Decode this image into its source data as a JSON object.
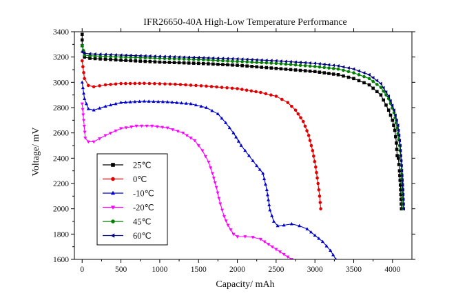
{
  "chart_data": {
    "type": "line",
    "title": "IFR26650-40A High-Low Temperature Performance",
    "xlabel": "Capacity/ mAh",
    "ylabel": "Voltage/ mV",
    "xlim": [
      -100,
      4250
    ],
    "ylim": [
      1600,
      3400
    ],
    "xticks": [
      0,
      500,
      1000,
      1500,
      2000,
      2500,
      3000,
      3500,
      4000
    ],
    "yticks": [
      1600,
      1800,
      2000,
      2200,
      2400,
      2600,
      2800,
      3000,
      3200,
      3400
    ],
    "grid": false,
    "legend_position": "bottom-left",
    "series": [
      {
        "name": "25℃",
        "color": "#000000",
        "marker": "square",
        "points": [
          [
            0,
            3380
          ],
          [
            0,
            3290
          ],
          [
            30,
            3200
          ],
          [
            100,
            3190
          ],
          [
            500,
            3175
          ],
          [
            1000,
            3160
          ],
          [
            1500,
            3150
          ],
          [
            2000,
            3135
          ],
          [
            2500,
            3110
          ],
          [
            3000,
            3085
          ],
          [
            3300,
            3060
          ],
          [
            3500,
            3030
          ],
          [
            3700,
            2980
          ],
          [
            3850,
            2900
          ],
          [
            3950,
            2780
          ],
          [
            4000,
            2700
          ],
          [
            4030,
            2620
          ],
          [
            4050,
            2520
          ],
          [
            4060,
            2420
          ],
          [
            4075,
            2400
          ],
          [
            4090,
            2300
          ],
          [
            4105,
            2150
          ],
          [
            4115,
            2000
          ]
        ]
      },
      {
        "name": "0℃",
        "color": "#e00000",
        "marker": "circle",
        "points": [
          [
            0,
            3170
          ],
          [
            30,
            3030
          ],
          [
            80,
            2975
          ],
          [
            150,
            2965
          ],
          [
            300,
            2980
          ],
          [
            500,
            2990
          ],
          [
            800,
            2992
          ],
          [
            1200,
            2985
          ],
          [
            1600,
            2970
          ],
          [
            2000,
            2950
          ],
          [
            2300,
            2920
          ],
          [
            2500,
            2890
          ],
          [
            2650,
            2840
          ],
          [
            2750,
            2780
          ],
          [
            2850,
            2690
          ],
          [
            2920,
            2580
          ],
          [
            2970,
            2460
          ],
          [
            3010,
            2330
          ],
          [
            3040,
            2200
          ],
          [
            3060,
            2100
          ],
          [
            3075,
            2000
          ]
        ]
      },
      {
        "name": "-10℃",
        "color": "#0000cc",
        "marker": "triangle-up",
        "points": [
          [
            0,
            3000
          ],
          [
            30,
            2870
          ],
          [
            80,
            2790
          ],
          [
            150,
            2780
          ],
          [
            300,
            2810
          ],
          [
            500,
            2840
          ],
          [
            800,
            2850
          ],
          [
            1100,
            2845
          ],
          [
            1400,
            2830
          ],
          [
            1600,
            2800
          ],
          [
            1750,
            2750
          ],
          [
            1850,
            2680
          ],
          [
            1950,
            2600
          ],
          [
            2050,
            2500
          ],
          [
            2150,
            2420
          ],
          [
            2250,
            2340
          ],
          [
            2330,
            2280
          ],
          [
            2380,
            2150
          ],
          [
            2420,
            1990
          ],
          [
            2470,
            1900
          ],
          [
            2520,
            1865
          ],
          [
            2600,
            1870
          ],
          [
            2700,
            1880
          ],
          [
            2800,
            1865
          ],
          [
            2900,
            1840
          ],
          [
            3000,
            1790
          ],
          [
            3100,
            1740
          ],
          [
            3200,
            1670
          ],
          [
            3270,
            1600
          ]
        ]
      },
      {
        "name": "-20℃",
        "color": "#ff00ff",
        "marker": "triangle-down",
        "points": [
          [
            0,
            2830
          ],
          [
            20,
            2700
          ],
          [
            40,
            2560
          ],
          [
            80,
            2530
          ],
          [
            150,
            2530
          ],
          [
            300,
            2580
          ],
          [
            500,
            2635
          ],
          [
            700,
            2655
          ],
          [
            900,
            2655
          ],
          [
            1100,
            2640
          ],
          [
            1300,
            2600
          ],
          [
            1450,
            2540
          ],
          [
            1550,
            2460
          ],
          [
            1630,
            2370
          ],
          [
            1680,
            2280
          ],
          [
            1730,
            2170
          ],
          [
            1780,
            2040
          ],
          [
            1830,
            1940
          ],
          [
            1880,
            1870
          ],
          [
            1950,
            1800
          ],
          [
            2000,
            1780
          ],
          [
            2100,
            1780
          ],
          [
            2200,
            1775
          ],
          [
            2300,
            1760
          ],
          [
            2400,
            1720
          ],
          [
            2550,
            1660
          ],
          [
            2700,
            1600
          ]
        ]
      },
      {
        "name": "45℃",
        "color": "#008000",
        "marker": "circle",
        "points": [
          [
            0,
            3290
          ],
          [
            30,
            3215
          ],
          [
            100,
            3210
          ],
          [
            500,
            3200
          ],
          [
            1000,
            3190
          ],
          [
            1500,
            3180
          ],
          [
            2000,
            3165
          ],
          [
            2500,
            3150
          ],
          [
            3000,
            3125
          ],
          [
            3300,
            3105
          ],
          [
            3500,
            3075
          ],
          [
            3700,
            3030
          ],
          [
            3850,
            2960
          ],
          [
            3950,
            2870
          ],
          [
            4020,
            2760
          ],
          [
            4060,
            2640
          ],
          [
            4090,
            2500
          ],
          [
            4110,
            2380
          ],
          [
            4125,
            2200
          ],
          [
            4135,
            2000
          ]
        ]
      },
      {
        "name": "60℃",
        "color": "#000080",
        "marker": "triangle-left",
        "points": [
          [
            0,
            3240
          ],
          [
            30,
            3230
          ],
          [
            100,
            3225
          ],
          [
            500,
            3215
          ],
          [
            1000,
            3205
          ],
          [
            1500,
            3195
          ],
          [
            2000,
            3185
          ],
          [
            2500,
            3170
          ],
          [
            3000,
            3150
          ],
          [
            3300,
            3130
          ],
          [
            3500,
            3105
          ],
          [
            3700,
            3060
          ],
          [
            3850,
            2990
          ],
          [
            3950,
            2890
          ],
          [
            4020,
            2780
          ],
          [
            4070,
            2660
          ],
          [
            4100,
            2500
          ],
          [
            4120,
            2300
          ],
          [
            4135,
            2150
          ],
          [
            4145,
            2000
          ]
        ]
      }
    ]
  }
}
